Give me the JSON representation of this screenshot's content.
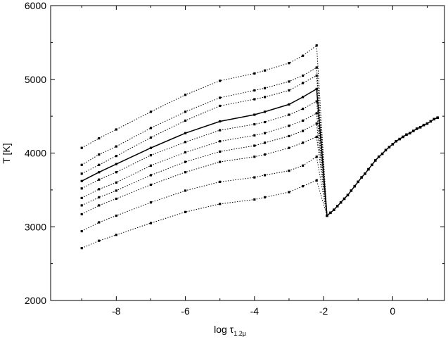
{
  "chart_data": {
    "type": "line",
    "title": "",
    "xlabel": "log τ",
    "xlabel_sub": "1.2μ",
    "ylabel": "T [K]",
    "xlim": [
      -9.9,
      1.5
    ],
    "ylim": [
      2000,
      6000
    ],
    "x_ticks": [
      -8,
      -6,
      -4,
      -2,
      0
    ],
    "y_ticks": [
      2000,
      3000,
      4000,
      5000,
      6000
    ],
    "x_tick_labels": [
      "-8",
      "-6",
      "-4",
      "-2",
      "0"
    ],
    "y_tick_labels": [
      "2000",
      "3000",
      "4000",
      "5000",
      "6000"
    ],
    "grid": false,
    "legend": "none",
    "x_upper": [
      -9.0,
      -8.5,
      -8.0,
      -7.0,
      -6.0,
      -5.0,
      -4.0,
      -3.7,
      -3.0,
      -2.6,
      -2.2
    ],
    "upper_series": [
      {
        "style": "dotted",
        "values": [
          4070,
          4200,
          4320,
          4560,
          4790,
          4980,
          5080,
          5120,
          5220,
          5320,
          5460
        ]
      },
      {
        "style": "dotted",
        "values": [
          3840,
          3980,
          4090,
          4340,
          4560,
          4750,
          4850,
          4880,
          4970,
          5050,
          5160
        ]
      },
      {
        "style": "dotted",
        "values": [
          3720,
          3840,
          3960,
          4210,
          4440,
          4640,
          4730,
          4760,
          4850,
          4950,
          5050
        ]
      },
      {
        "style": "solid",
        "values": [
          3620,
          3740,
          3850,
          4070,
          4270,
          4430,
          4520,
          4560,
          4660,
          4760,
          4870
        ]
      },
      {
        "style": "dotted",
        "values": [
          3520,
          3640,
          3740,
          3970,
          4150,
          4310,
          4390,
          4420,
          4520,
          4600,
          4700
        ]
      },
      {
        "style": "dotted",
        "values": [
          3390,
          3510,
          3600,
          3830,
          4010,
          4160,
          4240,
          4270,
          4370,
          4440,
          4540
        ]
      },
      {
        "style": "dotted",
        "values": [
          3290,
          3400,
          3490,
          3700,
          3880,
          4020,
          4100,
          4140,
          4230,
          4300,
          4400
        ]
      },
      {
        "style": "dotted",
        "values": [
          3170,
          3290,
          3380,
          3570,
          3740,
          3880,
          3950,
          3980,
          4070,
          4140,
          4220
        ]
      },
      {
        "style": "dotted",
        "values": [
          2940,
          3060,
          3150,
          3330,
          3490,
          3610,
          3670,
          3700,
          3760,
          3830,
          3950
        ]
      },
      {
        "style": "dotted",
        "values": [
          2710,
          2810,
          2890,
          3050,
          3200,
          3310,
          3370,
          3400,
          3470,
          3550,
          3630
        ]
      }
    ],
    "converge_point": [
      -1.9,
      3150
    ],
    "lower_curve": {
      "x": [
        -1.9,
        -1.8,
        -1.7,
        -1.6,
        -1.5,
        -1.4,
        -1.3,
        -1.2,
        -1.1,
        -1.0,
        -0.9,
        -0.8,
        -0.7,
        -0.6,
        -0.5,
        -0.4,
        -0.3,
        -0.2,
        -0.1,
        0.0,
        0.1,
        0.2,
        0.3,
        0.4,
        0.5,
        0.6,
        0.7,
        0.8,
        0.9,
        1.0,
        1.1,
        1.2,
        1.3
      ],
      "y": [
        3150,
        3190,
        3230,
        3280,
        3330,
        3380,
        3430,
        3490,
        3550,
        3610,
        3670,
        3720,
        3780,
        3840,
        3900,
        3950,
        3990,
        4040,
        4080,
        4120,
        4160,
        4190,
        4220,
        4250,
        4270,
        4300,
        4330,
        4350,
        4380,
        4400,
        4430,
        4460,
        4480
      ]
    }
  }
}
